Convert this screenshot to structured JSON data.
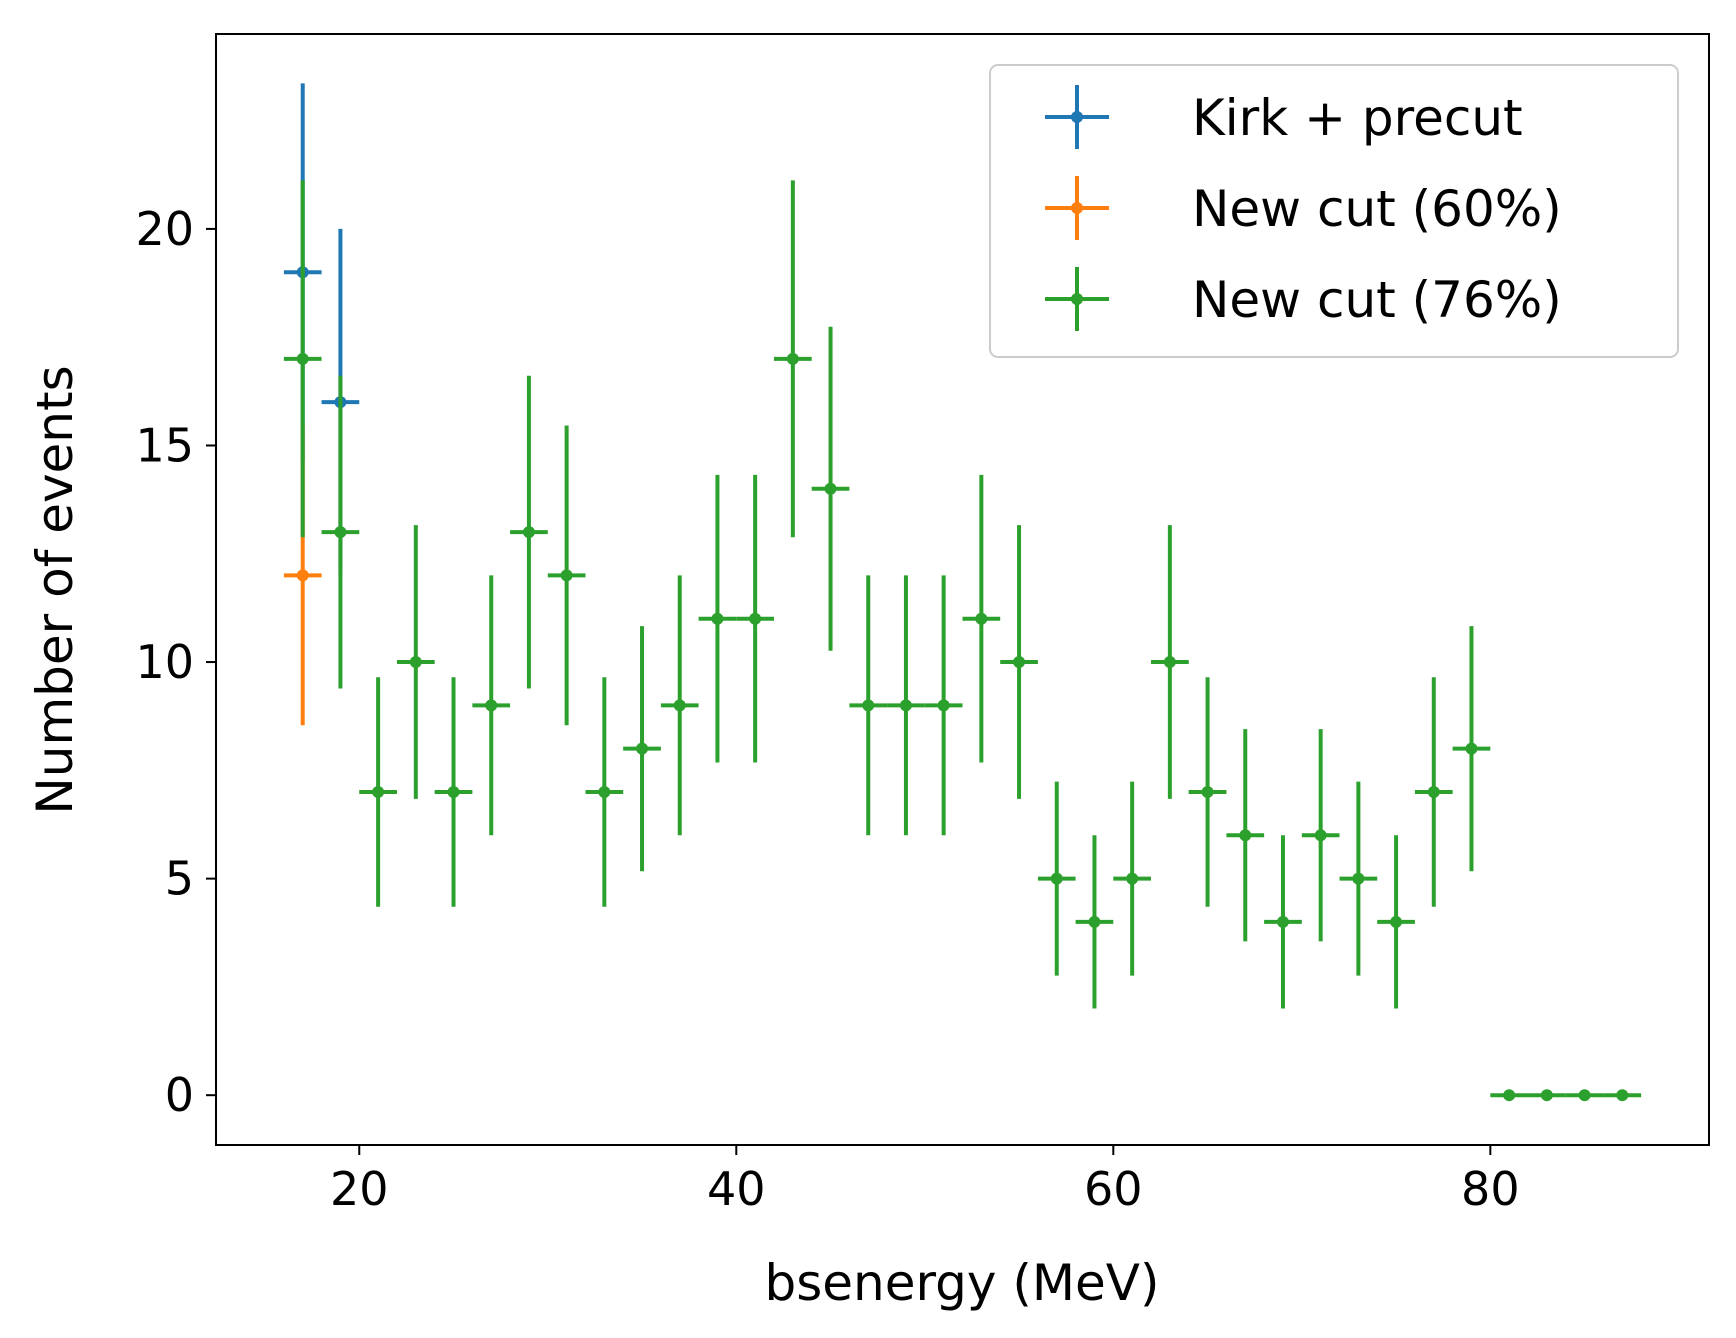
{
  "chart_data": {
    "type": "scatter",
    "title": "",
    "xlabel": "bsenergy (MeV)",
    "ylabel": "Number of events",
    "xlim": [
      12.4,
      91.6
    ],
    "ylim": [
      -1.15,
      24.5
    ],
    "xticks": [
      20,
      40,
      60,
      80
    ],
    "yticks": [
      0,
      5,
      10,
      15,
      20
    ],
    "grid": false,
    "legend_position": "top-right",
    "xerr": 1,
    "series": [
      {
        "name": "Kirk + precut",
        "color": "#1f77b4",
        "x": [
          17,
          19
        ],
        "y": [
          19,
          16
        ],
        "yerr": [
          4.36,
          4.0
        ]
      },
      {
        "name": "New cut (60%)",
        "color": "#ff7f0e",
        "x": [
          17
        ],
        "y": [
          12
        ],
        "yerr": [
          3.46
        ]
      },
      {
        "name": "New cut (76%)",
        "color": "#2ca02c",
        "x": [
          17,
          19,
          21,
          23,
          25,
          27,
          29,
          31,
          33,
          35,
          37,
          39,
          41,
          43,
          45,
          47,
          49,
          51,
          53,
          55,
          57,
          59,
          61,
          63,
          65,
          67,
          69,
          71,
          73,
          75,
          77,
          79,
          81,
          83,
          85,
          87
        ],
        "y": [
          17,
          13,
          7,
          10,
          7,
          9,
          13,
          12,
          7,
          8,
          9,
          11,
          11,
          17,
          14,
          9,
          9,
          9,
          11,
          10,
          5,
          4,
          5,
          10,
          7,
          6,
          4,
          6,
          5,
          4,
          7,
          8,
          0,
          0,
          0,
          0
        ],
        "yerr": [
          4.12,
          3.61,
          2.65,
          3.16,
          2.65,
          3.0,
          3.61,
          3.46,
          2.65,
          2.83,
          3.0,
          3.32,
          3.32,
          4.12,
          3.74,
          3.0,
          3.0,
          3.0,
          3.32,
          3.16,
          2.24,
          2.0,
          2.24,
          3.16,
          2.65,
          2.45,
          2.0,
          2.45,
          2.24,
          2.0,
          2.65,
          2.83,
          0,
          0,
          0,
          0
        ]
      }
    ]
  }
}
